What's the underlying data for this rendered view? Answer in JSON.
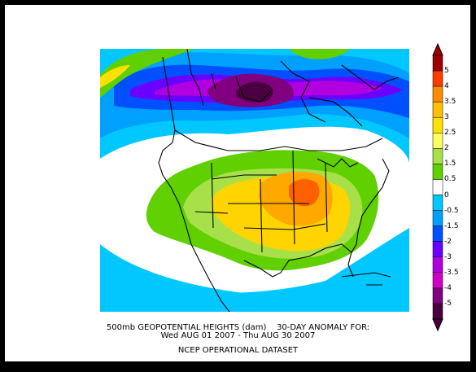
{
  "caption": {
    "line1": "500mb GEOPOTENTIAL HEIGHTS (dam)    30-DAY ANOMALY FOR:",
    "line2": "Wed AUG 01 2007 - Thu AUG 30 2007",
    "line3": "NCEP OPERATIONAL DATASET"
  },
  "colorbar": {
    "labels": [
      "5",
      "4",
      "3.5",
      "3",
      "2.5",
      "2",
      "1.5",
      "0.5",
      "0",
      "-0.5",
      "-1.5",
      "-2",
      "-3",
      "-3.5",
      "-4",
      "-5"
    ],
    "colors": [
      "#a00000",
      "#ff3c00",
      "#ff8c00",
      "#ffc000",
      "#ffe000",
      "#ffff60",
      "#a8e04a",
      "#60d000",
      "#ffffff",
      "#00c8ff",
      "#00a0ff",
      "#0050ff",
      "#6a00ff",
      "#b000e0",
      "#d000c8",
      "#80007f",
      "#4a0040"
    ]
  },
  "palette": {
    "field_background": "#00c8ff",
    "neutral": "#ffffff",
    "positive_low": "#60d000",
    "positive_mid": "#ffd400",
    "positive_high": "#ffa800",
    "positive_peak": "#ff6000",
    "negative_low": "#00a0ff",
    "negative_mid": "#0050ff",
    "negative_high": "#b000e0",
    "negative_peak": "#80007f",
    "outline": "#000000"
  }
}
